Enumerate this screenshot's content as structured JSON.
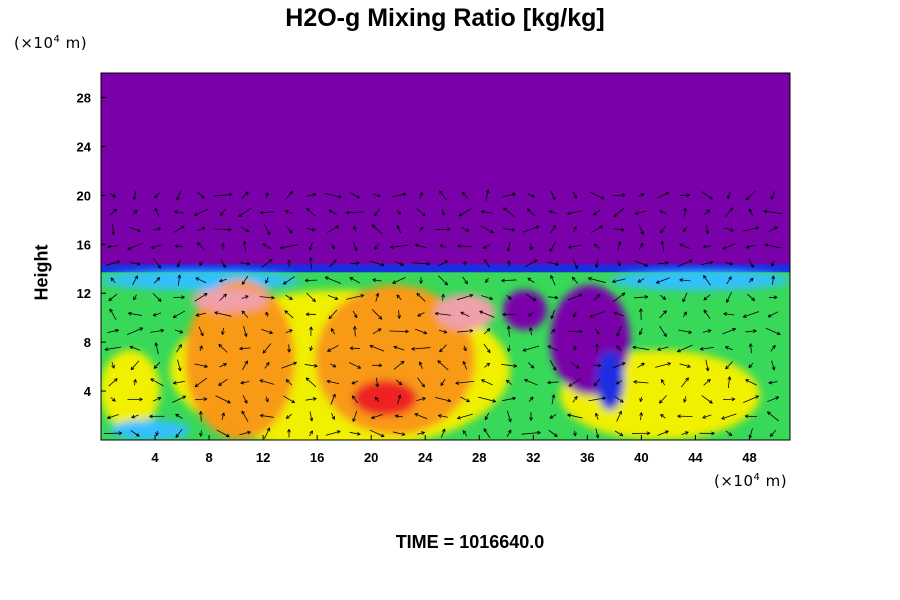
{
  "title": "H2O-g Mixing Ratio [kg/kg]",
  "y_unit": {
    "base": "(×10",
    "exp": "4",
    "tail": " m)"
  },
  "x_unit": {
    "base": "(×10",
    "exp": "4",
    "tail": " m)"
  },
  "ylabel": "Height",
  "time_label": "TIME = 1016640.0",
  "colors": {
    "dry": "#7a00aa",
    "blue": "#1a2ee0",
    "cyan": "#30c0ff",
    "green": "#38d858",
    "yellow": "#f0f000",
    "orange": "#f89a18",
    "red": "#ee2020",
    "pink": "#f0a0a8"
  },
  "chart_data": {
    "type": "heatmap",
    "overlay": "wind vectors",
    "xlim": [
      0,
      51
    ],
    "ylim": [
      0,
      30
    ],
    "x_ticks": [
      4,
      8,
      12,
      16,
      20,
      24,
      28,
      32,
      36,
      40,
      44,
      48
    ],
    "y_ticks": [
      4,
      8,
      12,
      16,
      20,
      24,
      28
    ],
    "moist_layer_top": 14.2,
    "vector_layer_top": 20
  }
}
